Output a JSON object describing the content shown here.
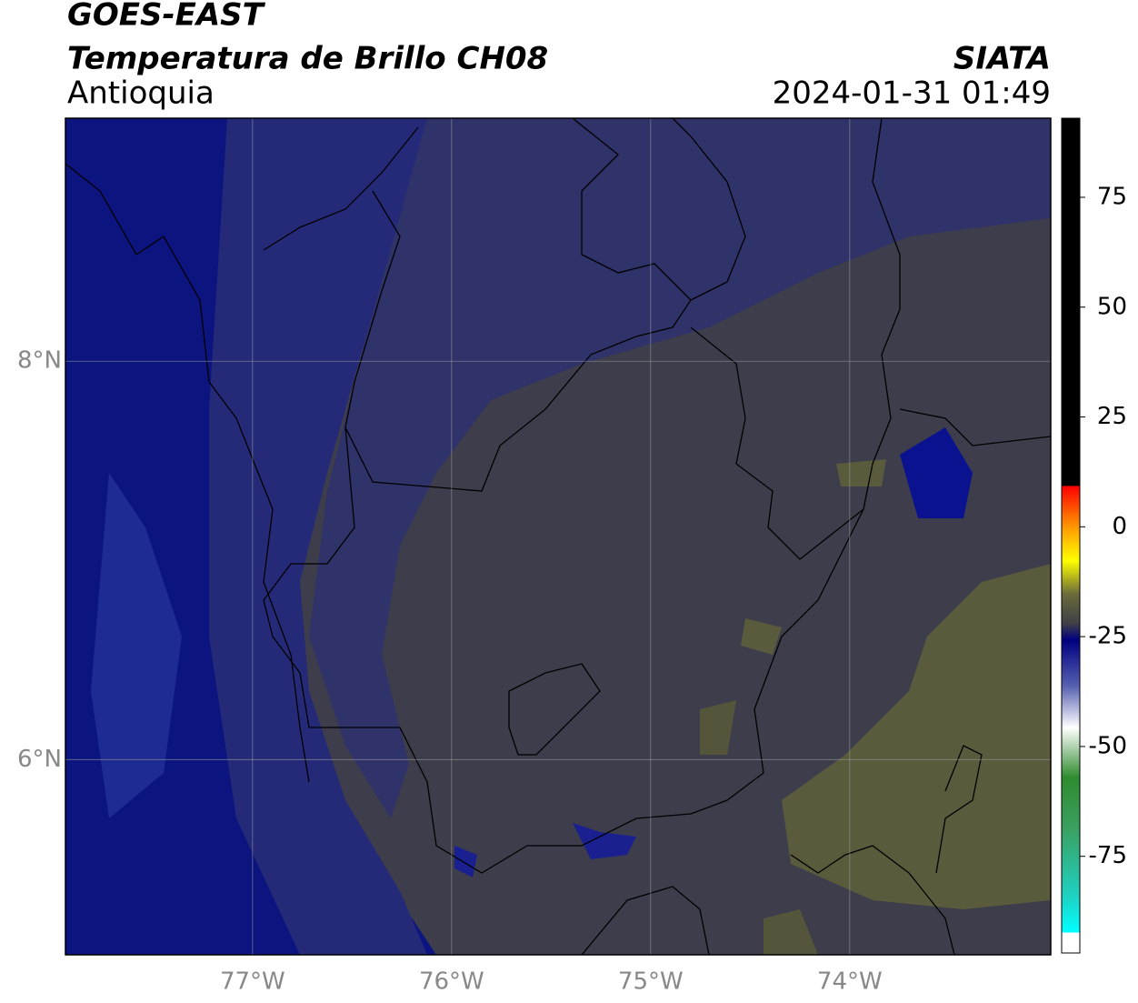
{
  "header": {
    "title": "GOES-EAST",
    "subtitle": "Temperatura de Brillo CH08",
    "region": "Antioquia",
    "source": "SIATA",
    "datetime": "2024-01-31 01:49"
  },
  "map": {
    "lonlim": [
      -77.94,
      -72.99
    ],
    "latlim": [
      5.02,
      9.22
    ],
    "lonticks": [
      {
        "value": -77,
        "label": "77°W"
      },
      {
        "value": -76,
        "label": "76°W"
      },
      {
        "value": -75,
        "label": "75°W"
      },
      {
        "value": -74,
        "label": "74°W"
      }
    ],
    "latticks": [
      {
        "value": 8,
        "label": "8°N"
      },
      {
        "value": 6,
        "label": "6°N"
      }
    ]
  },
  "colorbar": {
    "lim": [
      -97,
      93
    ],
    "ticks": [
      75,
      50,
      25,
      0,
      -25,
      -50,
      -75
    ]
  }
}
